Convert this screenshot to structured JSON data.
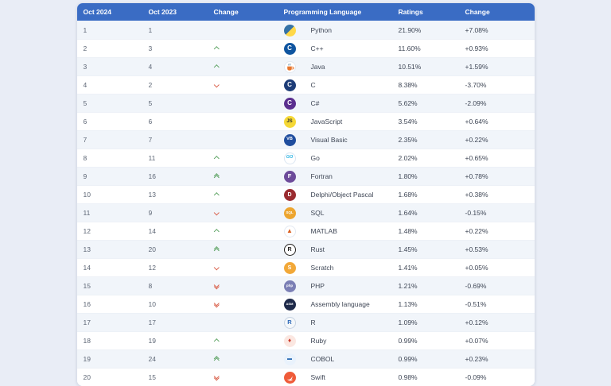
{
  "colors": {
    "header_bg": "#3a6cc4",
    "row_alt_bg": "#f1f5fa",
    "up_arrow": "#5da363",
    "down_arrow": "#d9604a"
  },
  "table": {
    "columns": [
      "Oct 2024",
      "Oct 2023",
      "Change",
      "Programming Language",
      "Ratings",
      "Change"
    ],
    "rows": [
      {
        "rank2024": "1",
        "rank2023": "1",
        "move": {
          "dir": "none",
          "steps": 0
        },
        "language": "Python",
        "rating": "21.90%",
        "delta": "+7.08%",
        "icon": {
          "kind": "python-icon"
        }
      },
      {
        "rank2024": "2",
        "rank2023": "3",
        "move": {
          "dir": "up",
          "steps": 1
        },
        "language": "C++",
        "rating": "11.60%",
        "delta": "+0.93%",
        "icon": {
          "kind": "cpp-icon",
          "bg": "#0f55a0",
          "fg": "#ffffff",
          "text": "C",
          "fs": "8"
        }
      },
      {
        "rank2024": "3",
        "rank2023": "4",
        "move": {
          "dir": "up",
          "steps": 1
        },
        "language": "Java",
        "rating": "10.51%",
        "delta": "+1.59%",
        "icon": {
          "kind": "java-icon"
        }
      },
      {
        "rank2024": "4",
        "rank2023": "2",
        "move": {
          "dir": "down",
          "steps": 1
        },
        "language": "C",
        "rating": "8.38%",
        "delta": "-3.70%",
        "icon": {
          "kind": "c-icon",
          "bg": "#1d3c77",
          "fg": "#ffffff",
          "text": "C",
          "fs": "8"
        }
      },
      {
        "rank2024": "5",
        "rank2023": "5",
        "move": {
          "dir": "none",
          "steps": 0
        },
        "language": "C#",
        "rating": "5.62%",
        "delta": "-2.09%",
        "icon": {
          "kind": "csharp-icon",
          "bg": "#5b2f8f",
          "fg": "#ffffff",
          "text": "C",
          "fs": "8"
        }
      },
      {
        "rank2024": "6",
        "rank2023": "6",
        "move": {
          "dir": "none",
          "steps": 0
        },
        "language": "JavaScript",
        "rating": "3.54%",
        "delta": "+0.64%",
        "icon": {
          "kind": "javascript-icon",
          "bg": "#f5d836",
          "fg": "#2e2e2c",
          "text": "JS",
          "fs": "6"
        }
      },
      {
        "rank2024": "7",
        "rank2023": "7",
        "move": {
          "dir": "none",
          "steps": 0
        },
        "language": "Visual Basic",
        "rating": "2.35%",
        "delta": "+0.22%",
        "icon": {
          "kind": "visual-basic-icon",
          "bg": "#1f4d9e",
          "fg": "#ffffff",
          "text": "VB",
          "fs": "5.5"
        }
      },
      {
        "rank2024": "8",
        "rank2023": "11",
        "move": {
          "dir": "up",
          "steps": 1
        },
        "language": "Go",
        "rating": "2.02%",
        "delta": "+0.65%",
        "icon": {
          "kind": "go-icon",
          "bg": "#ffffff",
          "border": "#dbe6f2",
          "fg": "#29b3e2",
          "text": "GO",
          "fs": "5.5"
        }
      },
      {
        "rank2024": "9",
        "rank2023": "16",
        "move": {
          "dir": "up",
          "steps": 2
        },
        "language": "Fortran",
        "rating": "1.80%",
        "delta": "+0.78%",
        "icon": {
          "kind": "fortran-icon",
          "bg": "#6d4b9a",
          "fg": "#ffffff",
          "text": "F",
          "fs": "7.5"
        }
      },
      {
        "rank2024": "10",
        "rank2023": "13",
        "move": {
          "dir": "up",
          "steps": 1
        },
        "language": "Delphi/Object Pascal",
        "rating": "1.68%",
        "delta": "+0.38%",
        "icon": {
          "kind": "delphi-icon",
          "bg": "#9a2b30",
          "fg": "#ffffff",
          "text": "D",
          "fs": "7"
        }
      },
      {
        "rank2024": "11",
        "rank2023": "9",
        "move": {
          "dir": "down",
          "steps": 1
        },
        "language": "SQL",
        "rating": "1.64%",
        "delta": "-0.15%",
        "icon": {
          "kind": "sql-icon",
          "bg": "#eda52f",
          "fg": "#ffffff",
          "text": "SQL",
          "fs": "4.5"
        }
      },
      {
        "rank2024": "12",
        "rank2023": "14",
        "move": {
          "dir": "up",
          "steps": 1
        },
        "language": "MATLAB",
        "rating": "1.48%",
        "delta": "+0.22%",
        "icon": {
          "kind": "matlab-icon",
          "bg": "#ffffff",
          "border": "#e4e9f1",
          "fg": "#d95d1e",
          "text": "▲",
          "fs": "8"
        }
      },
      {
        "rank2024": "13",
        "rank2023": "20",
        "move": {
          "dir": "up",
          "steps": 2
        },
        "language": "Rust",
        "rating": "1.45%",
        "delta": "+0.53%",
        "icon": {
          "kind": "rust-icon",
          "bg": "#ffffff",
          "border": "#23211f",
          "fg": "#23211f",
          "text": "R",
          "fs": "7"
        }
      },
      {
        "rank2024": "14",
        "rank2023": "12",
        "move": {
          "dir": "down",
          "steps": 1
        },
        "language": "Scratch",
        "rating": "1.41%",
        "delta": "+0.05%",
        "icon": {
          "kind": "scratch-icon",
          "bg": "#f2a838",
          "fg": "#ffffff",
          "text": "S",
          "fs": "7"
        }
      },
      {
        "rank2024": "15",
        "rank2023": "8",
        "move": {
          "dir": "down",
          "steps": 2
        },
        "language": "PHP",
        "rating": "1.21%",
        "delta": "-0.69%",
        "icon": {
          "kind": "php-icon",
          "bg": "#7b7fb5",
          "fg": "#ffffff",
          "text": "php",
          "fs": "4.5"
        }
      },
      {
        "rank2024": "16",
        "rank2023": "10",
        "move": {
          "dir": "down",
          "steps": 2
        },
        "language": "Assembly language",
        "rating": "1.13%",
        "delta": "-0.51%",
        "icon": {
          "kind": "assembly-icon",
          "bg": "#1e2a4a",
          "fg": "#ffffff",
          "text": "ASM",
          "fs": "4"
        }
      },
      {
        "rank2024": "17",
        "rank2023": "17",
        "move": {
          "dir": "none",
          "steps": 0
        },
        "language": "R",
        "rating": "1.09%",
        "delta": "+0.12%",
        "icon": {
          "kind": "r-icon",
          "bg": "#f4f7fa",
          "border": "#c7d3e2",
          "fg": "#2c68b8",
          "text": "R",
          "fs": "7.5"
        }
      },
      {
        "rank2024": "18",
        "rank2023": "19",
        "move": {
          "dir": "up",
          "steps": 1
        },
        "language": "Ruby",
        "rating": "0.99%",
        "delta": "+0.07%",
        "icon": {
          "kind": "ruby-icon",
          "bg": "#fbe7e1",
          "fg": "#cc3a2b",
          "text": "♦",
          "fs": "8"
        }
      },
      {
        "rank2024": "19",
        "rank2023": "24",
        "move": {
          "dir": "up",
          "steps": 2
        },
        "language": "COBOL",
        "rating": "0.99%",
        "delta": "+0.23%",
        "icon": {
          "kind": "cobol-icon",
          "bg": "#e9f2fc",
          "fg": "#2d6db5",
          "text": "▬",
          "fs": "6"
        }
      },
      {
        "rank2024": "20",
        "rank2023": "15",
        "move": {
          "dir": "down",
          "steps": 2
        },
        "language": "Swift",
        "rating": "0.98%",
        "delta": "-0.09%",
        "icon": {
          "kind": "swift-icon"
        }
      }
    ]
  }
}
